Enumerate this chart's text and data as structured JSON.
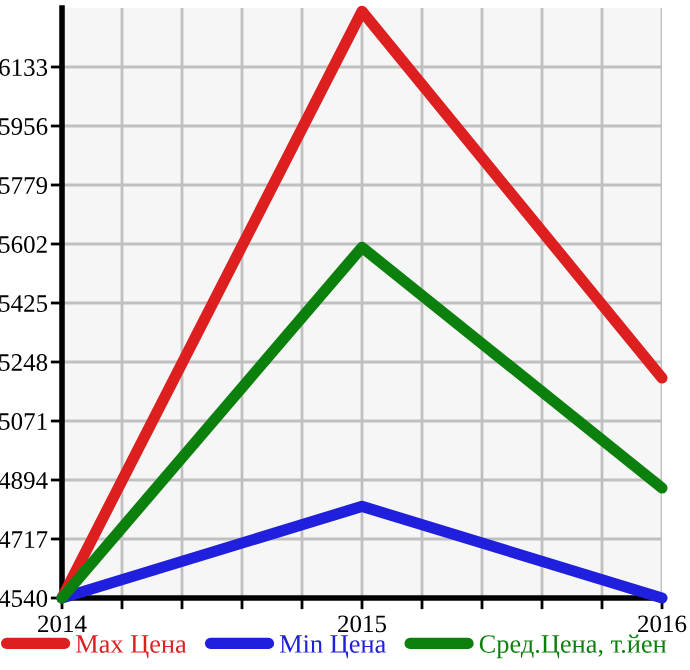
{
  "chart_data": {
    "type": "line",
    "x": [
      2014,
      2015,
      2016
    ],
    "series": [
      {
        "name": "Max Цена",
        "color": "#dd1f1f",
        "values": [
          4540,
          6300,
          5200
        ]
      },
      {
        "name": "Min Цена",
        "color": "#1f1fdd",
        "values": [
          4540,
          4815,
          4540
        ]
      },
      {
        "name": "Сред.Цена, т.йен",
        "color": "#0c800c",
        "values": [
          4540,
          5592,
          4870
        ]
      }
    ],
    "xlim": [
      2014,
      2016
    ],
    "xticks": [
      2014,
      {
        "value": 2014.2,
        "label": null
      },
      {
        "value": 2014.4,
        "label": null
      },
      {
        "value": 2014.6,
        "label": null
      },
      {
        "value": 2014.8,
        "label": null
      },
      2015,
      {
        "value": 2015.2,
        "label": null
      },
      {
        "value": 2015.4,
        "label": null
      },
      {
        "value": 2015.6,
        "label": null
      },
      {
        "value": 2015.8,
        "label": null
      },
      2016
    ],
    "ylim": [
      4540,
      6310
    ],
    "yticks": [
      4540,
      4717,
      4894,
      5071,
      5248,
      5425,
      5602,
      5779,
      5956,
      6133
    ],
    "grid": true,
    "legend": "bottom",
    "marker": "none",
    "line_style": "solid"
  }
}
